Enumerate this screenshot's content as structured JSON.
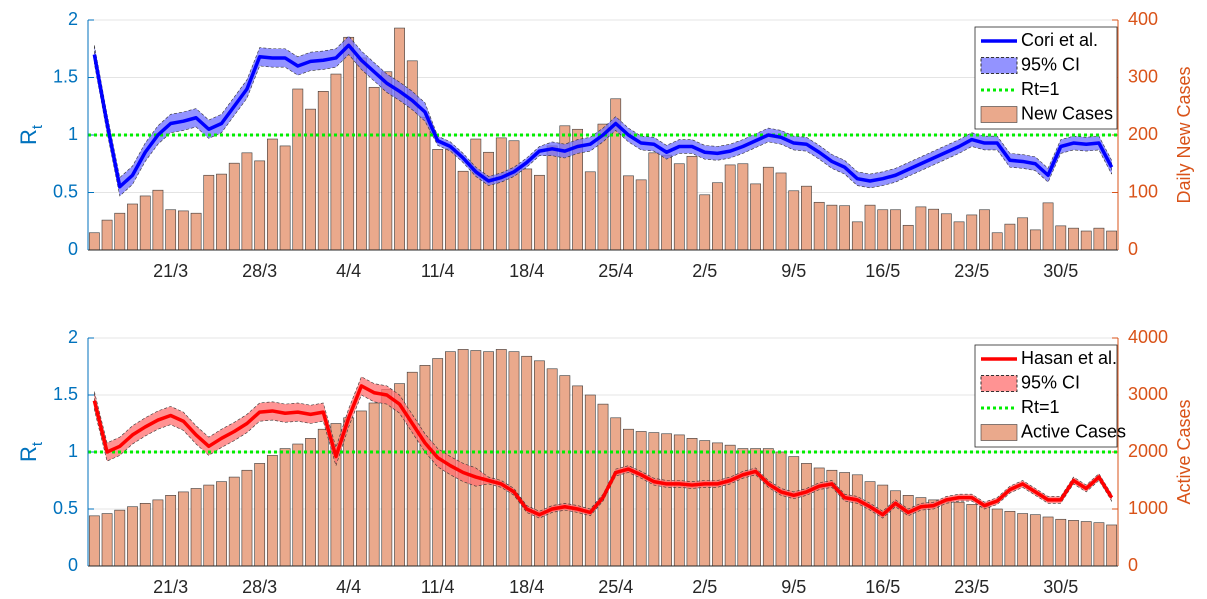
{
  "chart_data": [
    {
      "type": "combo",
      "categories": [
        null,
        null,
        null,
        null,
        null,
        null,
        "21/3",
        null,
        null,
        null,
        null,
        null,
        null,
        "28/3",
        null,
        null,
        null,
        null,
        null,
        null,
        "4/4",
        null,
        null,
        null,
        null,
        null,
        null,
        "11/4",
        null,
        null,
        null,
        null,
        null,
        null,
        "18/4",
        null,
        null,
        null,
        null,
        null,
        null,
        "25/4",
        null,
        null,
        null,
        null,
        null,
        null,
        "2/5",
        null,
        null,
        null,
        null,
        null,
        null,
        "9/5",
        null,
        null,
        null,
        null,
        null,
        null,
        "16/5",
        null,
        null,
        null,
        null,
        null,
        null,
        "23/5",
        null,
        null,
        null,
        null,
        null,
        null,
        "30/5",
        null,
        null,
        null,
        null
      ],
      "series": [
        {
          "name": "Cori et al.",
          "color": "#0000ff",
          "values": [
            1.7,
            1.1,
            0.55,
            0.65,
            0.85,
            1.0,
            1.1,
            1.12,
            1.15,
            1.05,
            1.1,
            1.25,
            1.4,
            1.68,
            1.67,
            1.67,
            1.6,
            1.64,
            1.65,
            1.67,
            1.78,
            1.65,
            1.55,
            1.45,
            1.38,
            1.3,
            1.2,
            0.95,
            0.9,
            0.8,
            0.68,
            0.6,
            0.63,
            0.68,
            0.76,
            0.86,
            0.88,
            0.86,
            0.9,
            0.92,
            1.0,
            1.1,
            1.0,
            0.93,
            0.92,
            0.85,
            0.9,
            0.9,
            0.85,
            0.84,
            0.86,
            0.9,
            0.95,
            1.0,
            0.98,
            0.93,
            0.92,
            0.85,
            0.77,
            0.72,
            0.62,
            0.6,
            0.62,
            0.65,
            0.7,
            0.75,
            0.8,
            0.85,
            0.9,
            0.96,
            0.93,
            0.93,
            0.78,
            0.77,
            0.75,
            0.65,
            0.9,
            0.93,
            0.92,
            0.93,
            0.72
          ]
        },
        {
          "name": "95% CI",
          "color": "#6f6fff",
          "upper": [
            1.78,
            1.18,
            0.63,
            0.73,
            0.93,
            1.08,
            1.18,
            1.2,
            1.23,
            1.13,
            1.18,
            1.33,
            1.48,
            1.76,
            1.75,
            1.75,
            1.68,
            1.72,
            1.73,
            1.75,
            1.86,
            1.73,
            1.63,
            1.53,
            1.46,
            1.38,
            1.28,
            0.99,
            0.94,
            0.84,
            0.72,
            0.64,
            0.67,
            0.72,
            0.8,
            0.9,
            0.94,
            0.92,
            0.96,
            0.98,
            1.06,
            1.16,
            1.06,
            0.99,
            0.98,
            0.91,
            0.96,
            0.96,
            0.91,
            0.9,
            0.92,
            0.96,
            1.01,
            1.06,
            1.04,
            0.99,
            0.98,
            0.91,
            0.83,
            0.78,
            0.68,
            0.66,
            0.68,
            0.71,
            0.76,
            0.81,
            0.86,
            0.91,
            0.96,
            1.02,
            0.99,
            0.99,
            0.84,
            0.83,
            0.81,
            0.71,
            0.96,
            0.99,
            0.98,
            0.99,
            0.78
          ],
          "lower": [
            1.62,
            1.02,
            0.47,
            0.57,
            0.77,
            0.92,
            1.02,
            1.04,
            1.07,
            0.97,
            1.02,
            1.17,
            1.32,
            1.6,
            1.59,
            1.59,
            1.52,
            1.56,
            1.57,
            1.59,
            1.7,
            1.57,
            1.47,
            1.37,
            1.3,
            1.22,
            1.12,
            0.91,
            0.86,
            0.76,
            0.64,
            0.56,
            0.59,
            0.64,
            0.72,
            0.82,
            0.82,
            0.8,
            0.84,
            0.86,
            0.94,
            1.04,
            0.94,
            0.87,
            0.86,
            0.79,
            0.84,
            0.84,
            0.79,
            0.78,
            0.8,
            0.84,
            0.89,
            0.94,
            0.92,
            0.87,
            0.86,
            0.79,
            0.71,
            0.66,
            0.56,
            0.54,
            0.56,
            0.59,
            0.64,
            0.69,
            0.74,
            0.79,
            0.84,
            0.9,
            0.87,
            0.87,
            0.72,
            0.71,
            0.69,
            0.59,
            0.84,
            0.87,
            0.86,
            0.87,
            0.66
          ]
        },
        {
          "name": "New Cases",
          "color": "#eaa98c",
          "axis": "y2",
          "values": [
            30,
            52,
            64,
            80,
            94,
            104,
            70,
            68,
            64,
            130,
            132,
            151,
            169,
            155,
            193,
            181,
            280,
            245,
            276,
            306,
            370,
            334,
            283,
            310,
            386,
            329,
            231,
            175,
            176,
            137,
            193,
            170,
            195,
            190,
            141,
            130,
            181,
            216,
            210,
            136,
            219,
            263,
            129,
            122,
            169,
            165,
            150,
            163,
            96,
            117,
            148,
            150,
            115,
            144,
            134,
            103,
            111,
            83,
            78,
            77,
            49,
            78,
            70,
            70,
            43,
            75,
            71,
            63,
            49,
            61,
            70,
            30,
            45,
            56,
            35,
            82,
            42,
            38,
            33,
            38,
            33
          ]
        }
      ],
      "reference_line": {
        "name": "Rt=1",
        "value": 1,
        "color": "#00ee00"
      },
      "y_label": [
        "R",
        "t"
      ],
      "y2_label": "Daily New Cases",
      "ylim": [
        0,
        2
      ],
      "yticks": [
        0,
        0.5,
        1,
        1.5,
        2
      ],
      "y2lim": [
        0,
        400
      ],
      "y2ticks": [
        0,
        100,
        200,
        300,
        400
      ],
      "grid": true,
      "legend": "upper right"
    },
    {
      "type": "combo",
      "categories": [
        null,
        null,
        null,
        null,
        null,
        null,
        "21/3",
        null,
        null,
        null,
        null,
        null,
        null,
        "28/3",
        null,
        null,
        null,
        null,
        null,
        null,
        "4/4",
        null,
        null,
        null,
        null,
        null,
        null,
        "11/4",
        null,
        null,
        null,
        null,
        null,
        null,
        "18/4",
        null,
        null,
        null,
        null,
        null,
        null,
        "25/4",
        null,
        null,
        null,
        null,
        null,
        null,
        "2/5",
        null,
        null,
        null,
        null,
        null,
        null,
        "9/5",
        null,
        null,
        null,
        null,
        null,
        null,
        "16/5",
        null,
        null,
        null,
        null,
        null,
        null,
        "23/5",
        null,
        null,
        null,
        null,
        null,
        null,
        "30/5",
        null,
        null,
        null,
        null
      ],
      "series": [
        {
          "name": "Hasan et al.",
          "color": "#ff0000",
          "values": [
            1.45,
            1.0,
            1.05,
            1.15,
            1.22,
            1.28,
            1.32,
            1.27,
            1.15,
            1.05,
            1.12,
            1.18,
            1.25,
            1.35,
            1.36,
            1.34,
            1.35,
            1.33,
            1.35,
            0.96,
            1.3,
            1.58,
            1.52,
            1.5,
            1.42,
            1.25,
            1.08,
            0.95,
            0.88,
            0.82,
            0.78,
            0.75,
            0.72,
            0.65,
            0.5,
            0.45,
            0.5,
            0.52,
            0.5,
            0.47,
            0.6,
            0.82,
            0.85,
            0.8,
            0.74,
            0.72,
            0.72,
            0.71,
            0.72,
            0.72,
            0.75,
            0.8,
            0.83,
            0.72,
            0.65,
            0.62,
            0.65,
            0.7,
            0.72,
            0.6,
            0.58,
            0.52,
            0.45,
            0.55,
            0.47,
            0.52,
            0.53,
            0.58,
            0.6,
            0.6,
            0.53,
            0.57,
            0.67,
            0.72,
            0.65,
            0.58,
            0.58,
            0.75,
            0.68,
            0.78,
            0.6
          ]
        },
        {
          "name": "95% CI",
          "color": "#ff6f6f",
          "upper": [
            1.53,
            1.08,
            1.13,
            1.23,
            1.3,
            1.36,
            1.4,
            1.35,
            1.23,
            1.13,
            1.2,
            1.26,
            1.33,
            1.43,
            1.44,
            1.42,
            1.43,
            1.41,
            1.43,
            1.04,
            1.38,
            1.66,
            1.6,
            1.58,
            1.5,
            1.33,
            1.16,
            1.03,
            0.96,
            0.9,
            0.86,
            0.78,
            0.75,
            0.68,
            0.53,
            0.48,
            0.53,
            0.55,
            0.53,
            0.5,
            0.63,
            0.85,
            0.88,
            0.83,
            0.77,
            0.75,
            0.75,
            0.74,
            0.75,
            0.75,
            0.78,
            0.83,
            0.86,
            0.75,
            0.68,
            0.65,
            0.68,
            0.73,
            0.75,
            0.63,
            0.61,
            0.55,
            0.48,
            0.58,
            0.5,
            0.55,
            0.56,
            0.61,
            0.63,
            0.63,
            0.56,
            0.6,
            0.7,
            0.75,
            0.68,
            0.61,
            0.61,
            0.78,
            0.71,
            0.81,
            0.63
          ],
          "lower": [
            1.37,
            0.92,
            0.97,
            1.07,
            1.14,
            1.2,
            1.24,
            1.19,
            1.07,
            0.97,
            1.04,
            1.1,
            1.17,
            1.27,
            1.28,
            1.26,
            1.27,
            1.25,
            1.27,
            0.88,
            1.22,
            1.5,
            1.44,
            1.42,
            1.34,
            1.17,
            1.0,
            0.87,
            0.8,
            0.74,
            0.7,
            0.72,
            0.69,
            0.62,
            0.47,
            0.42,
            0.47,
            0.49,
            0.47,
            0.44,
            0.57,
            0.79,
            0.82,
            0.77,
            0.71,
            0.69,
            0.69,
            0.68,
            0.69,
            0.69,
            0.72,
            0.77,
            0.8,
            0.69,
            0.62,
            0.59,
            0.62,
            0.67,
            0.69,
            0.57,
            0.55,
            0.49,
            0.42,
            0.52,
            0.44,
            0.49,
            0.5,
            0.55,
            0.57,
            0.57,
            0.5,
            0.54,
            0.64,
            0.69,
            0.62,
            0.55,
            0.55,
            0.72,
            0.65,
            0.75,
            0.57
          ]
        },
        {
          "name": "Active Cases",
          "color": "#eaa98c",
          "axis": "y2",
          "values": [
            880,
            920,
            980,
            1040,
            1100,
            1160,
            1240,
            1300,
            1360,
            1420,
            1480,
            1560,
            1680,
            1800,
            1940,
            2060,
            2140,
            2240,
            2400,
            2500,
            2600,
            2720,
            2860,
            3100,
            3200,
            3400,
            3520,
            3640,
            3760,
            3800,
            3780,
            3760,
            3800,
            3760,
            3680,
            3600,
            3460,
            3340,
            3160,
            3000,
            2840,
            2600,
            2400,
            2360,
            2340,
            2320,
            2300,
            2240,
            2200,
            2160,
            2120,
            2060,
            2060,
            2060,
            2000,
            1920,
            1800,
            1720,
            1680,
            1640,
            1600,
            1480,
            1420,
            1320,
            1240,
            1200,
            1160,
            1140,
            1120,
            1080,
            1040,
            1000,
            960,
            920,
            900,
            860,
            820,
            800,
            780,
            760,
            720
          ]
        }
      ],
      "reference_line": {
        "name": "Rt=1",
        "value": 1,
        "color": "#00ee00"
      },
      "y_label": [
        "R",
        "t"
      ],
      "y2_label": "Active Cases",
      "ylim": [
        0,
        2
      ],
      "yticks": [
        0,
        0.5,
        1,
        1.5,
        2
      ],
      "y2lim": [
        0,
        4000
      ],
      "y2ticks": [
        0,
        1000,
        2000,
        3000,
        4000
      ],
      "grid": true,
      "legend": "upper right"
    }
  ]
}
